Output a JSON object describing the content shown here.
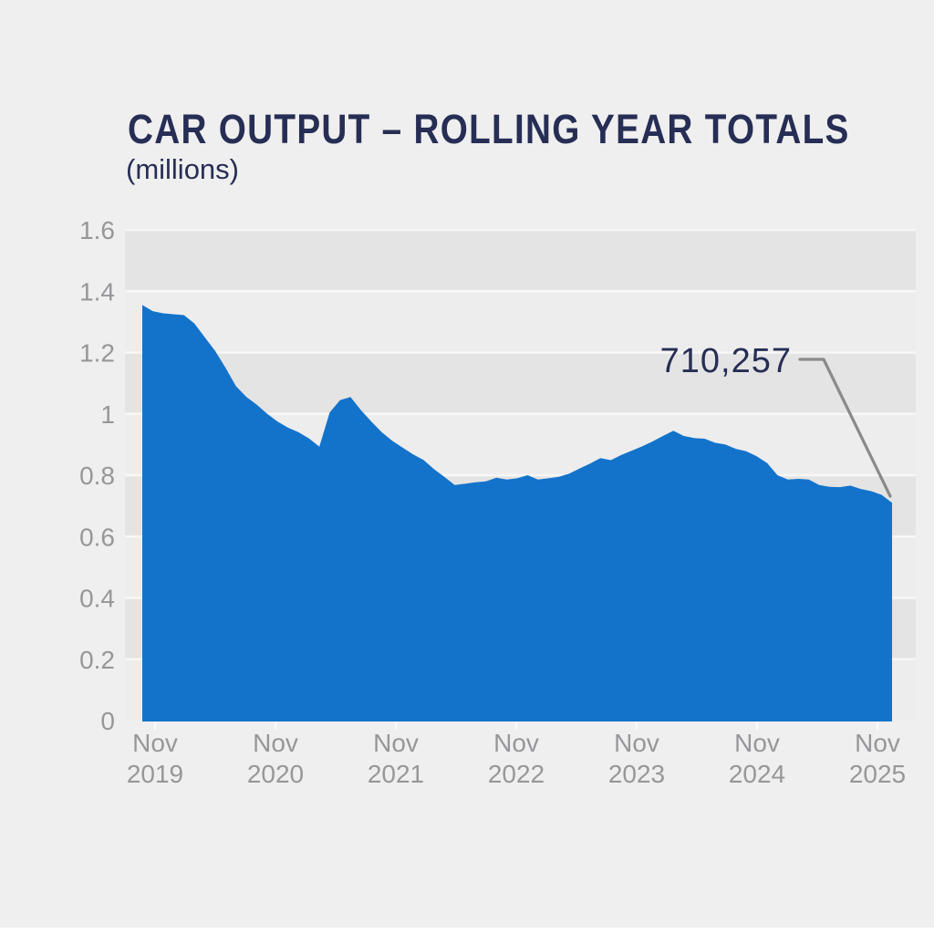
{
  "page": {
    "background": "#EFEFEF"
  },
  "header": {
    "title": "CAR OUTPUT – ROLLING YEAR TOTALS",
    "subtitle": "(millions)"
  },
  "chart_data": {
    "type": "area",
    "title": "CAR OUTPUT – ROLLING YEAR TOTALS",
    "unit": "millions",
    "grid": true,
    "legend": false,
    "ylim": [
      0,
      1.6
    ],
    "x": [
      "Nov 2019",
      "Dec 2019",
      "Jan 2020",
      "Feb 2020",
      "Mar 2020",
      "Apr 2020",
      "May 2020",
      "Jun 2020",
      "Jul 2020",
      "Aug 2020",
      "Sep 2020",
      "Oct 2020",
      "Nov 2020",
      "Dec 2020",
      "Jan 2021",
      "Feb 2021",
      "Mar 2021",
      "Apr 2021",
      "May 2021",
      "Jun 2021",
      "Jul 2021",
      "Aug 2021",
      "Sep 2021",
      "Oct 2021",
      "Nov 2021",
      "Dec 2021",
      "Jan 2022",
      "Feb 2022",
      "Mar 2022",
      "Apr 2022",
      "May 2022",
      "Jun 2022",
      "Jul 2022",
      "Aug 2022",
      "Sep 2022",
      "Oct 2022",
      "Nov 2022",
      "Dec 2022",
      "Jan 2023",
      "Feb 2023",
      "Mar 2023",
      "Apr 2023",
      "May 2023",
      "Jun 2023",
      "Jul 2023",
      "Aug 2023",
      "Sep 2023",
      "Oct 2023",
      "Nov 2023",
      "Dec 2023",
      "Jan 2024",
      "Feb 2024",
      "Mar 2024",
      "Apr 2024",
      "May 2024",
      "Jun 2024",
      "Jul 2024",
      "Aug 2024",
      "Sep 2024",
      "Oct 2024",
      "Nov 2024",
      "Dec 2024",
      "Jan 2025",
      "Feb 2025",
      "Mar 2025",
      "Apr 2025",
      "May 2025",
      "Jun 2025",
      "Jul 2025",
      "Aug 2025",
      "Sep 2025",
      "Oct 2025",
      "Nov 2025"
    ],
    "values": [
      1.355,
      1.335,
      1.328,
      1.325,
      1.322,
      1.295,
      1.25,
      1.205,
      1.15,
      1.09,
      1.055,
      1.03,
      1.0,
      0.975,
      0.955,
      0.94,
      0.92,
      0.893,
      1.005,
      1.045,
      1.055,
      1.012,
      0.975,
      0.94,
      0.912,
      0.89,
      0.868,
      0.85,
      0.82,
      0.795,
      0.768,
      0.772,
      0.777,
      0.78,
      0.792,
      0.786,
      0.79,
      0.8,
      0.786,
      0.79,
      0.795,
      0.805,
      0.822,
      0.838,
      0.856,
      0.849,
      0.866,
      0.88,
      0.894,
      0.91,
      0.928,
      0.945,
      0.928,
      0.921,
      0.919,
      0.906,
      0.9,
      0.886,
      0.878,
      0.862,
      0.84,
      0.8,
      0.786,
      0.788,
      0.786,
      0.768,
      0.762,
      0.761,
      0.766,
      0.755,
      0.748,
      0.736,
      0.710257
    ],
    "x_tick_labels": [
      {
        "month": "Nov",
        "year": "2019"
      },
      {
        "month": "Nov",
        "year": "2020"
      },
      {
        "month": "Nov",
        "year": "2021"
      },
      {
        "month": "Nov",
        "year": "2022"
      },
      {
        "month": "Nov",
        "year": "2023"
      },
      {
        "month": "Nov",
        "year": "2024"
      },
      {
        "month": "Nov",
        "year": "2025"
      }
    ],
    "y_ticks": [
      {
        "label": "1.6",
        "value": 1.6
      },
      {
        "label": "1.4",
        "value": 1.4
      },
      {
        "label": "1.2",
        "value": 1.2
      },
      {
        "label": "1",
        "value": 1.0
      },
      {
        "label": "0.8",
        "value": 0.8
      },
      {
        "label": "0.6",
        "value": 0.6
      },
      {
        "label": "0.4",
        "value": 0.4
      },
      {
        "label": "0.2",
        "value": 0.2
      },
      {
        "label": "0",
        "value": 0
      }
    ],
    "annotation": {
      "label": "710,257",
      "value": 0.710257,
      "points_to": "Nov 2025"
    },
    "colors": {
      "area": "#1373CB",
      "band_dark": "#E4E4E4",
      "band_light": "#EDEDED",
      "gridline": "#F7F7F7",
      "axis_text": "#97979A",
      "annotation_text": "#272E55",
      "callout_line": "#8A8A8A",
      "background": "#EFEFEF"
    }
  }
}
